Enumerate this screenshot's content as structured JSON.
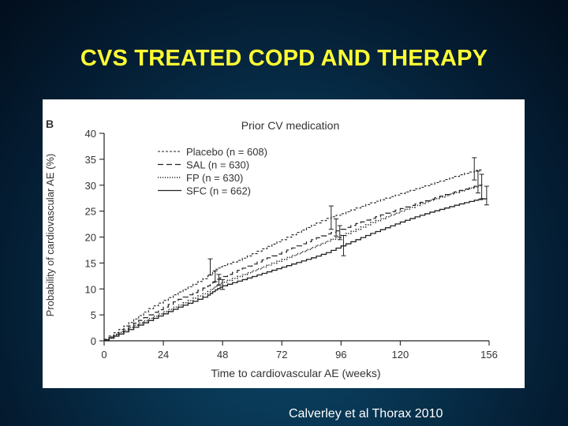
{
  "slide": {
    "title": "CVS TREATED COPD AND THERAPY",
    "citation": "Calverley et al Thorax 2010"
  },
  "chart_data": {
    "type": "line",
    "panel_label": "B",
    "title": "Prior CV medication",
    "xlabel": "Time to cardiovascular AE (weeks)",
    "ylabel": "Probability of cardiovascular AE (%)",
    "xlim": [
      0,
      156
    ],
    "ylim": [
      0,
      40
    ],
    "xticks": [
      0,
      24,
      48,
      72,
      96,
      120,
      156
    ],
    "yticks": [
      0,
      5,
      10,
      15,
      20,
      25,
      30,
      35,
      40
    ],
    "grid": false,
    "legend_position": "top-left",
    "series": [
      {
        "name": "Placebo (n = 608)",
        "style": "dashed-fine",
        "x": [
          0,
          6,
          12,
          18,
          24,
          30,
          36,
          42,
          45,
          48,
          54,
          60,
          66,
          72,
          78,
          84,
          90,
          96,
          102,
          108,
          114,
          120,
          126,
          132,
          138,
          144,
          150,
          153
        ],
        "y": [
          0.3,
          2.2,
          4.2,
          6.2,
          7.8,
          9.4,
          10.9,
          12.5,
          13.8,
          14.5,
          15.5,
          16.8,
          18.2,
          19.5,
          20.9,
          22.3,
          23.6,
          24.5,
          25.6,
          26.6,
          27.5,
          28.4,
          29.3,
          30.2,
          31.1,
          32.0,
          32.8,
          33.0
        ]
      },
      {
        "name": "SAL (n = 630)",
        "style": "dashed",
        "x": [
          0,
          6,
          12,
          18,
          24,
          30,
          36,
          42,
          45,
          48,
          54,
          60,
          66,
          72,
          78,
          84,
          90,
          96,
          102,
          108,
          114,
          120,
          126,
          132,
          138,
          144,
          150,
          153
        ],
        "y": [
          0.2,
          1.8,
          3.4,
          5.0,
          6.5,
          8.0,
          9.3,
          10.6,
          11.6,
          12.4,
          13.6,
          14.8,
          16.0,
          17.1,
          18.3,
          19.5,
          20.6,
          21.5,
          22.6,
          23.6,
          24.6,
          25.5,
          26.4,
          27.3,
          28.2,
          29.0,
          29.8,
          30.0
        ]
      },
      {
        "name": "FP (n = 630)",
        "style": "dotted",
        "x": [
          0,
          6,
          12,
          18,
          24,
          30,
          36,
          42,
          45,
          48,
          54,
          60,
          66,
          72,
          78,
          84,
          90,
          96,
          102,
          108,
          114,
          120,
          126,
          132,
          138,
          144,
          150,
          153
        ],
        "y": [
          0.2,
          1.6,
          3.0,
          4.3,
          5.6,
          6.9,
          8.2,
          9.5,
          10.5,
          11.3,
          12.4,
          13.5,
          14.6,
          15.7,
          16.8,
          18.0,
          19.2,
          20.3,
          21.5,
          22.8,
          23.9,
          25.0,
          26.1,
          27.1,
          28.0,
          28.9,
          29.7,
          30.2
        ]
      },
      {
        "name": "SFC (n = 662)",
        "style": "solid",
        "x": [
          0,
          6,
          12,
          18,
          24,
          30,
          36,
          42,
          45,
          48,
          54,
          60,
          66,
          72,
          78,
          84,
          90,
          96,
          102,
          108,
          114,
          120,
          126,
          132,
          138,
          144,
          150,
          155
        ],
        "y": [
          0.1,
          1.3,
          2.6,
          3.9,
          5.2,
          6.5,
          7.6,
          8.8,
          9.8,
          10.6,
          11.5,
          12.4,
          13.3,
          14.2,
          15.1,
          16.0,
          17.0,
          18.3,
          19.5,
          20.7,
          21.8,
          22.9,
          23.9,
          24.8,
          25.6,
          26.4,
          27.1,
          27.5
        ]
      }
    ],
    "error_bars": [
      {
        "series": "Placebo (n = 608)",
        "x": 43,
        "low": 12.7,
        "high": 15.8
      },
      {
        "series": "SAL (n = 630)",
        "x": 45,
        "low": 11.4,
        "high": 13.5
      },
      {
        "series": "FP (n = 630)",
        "x": 46.5,
        "low": 10.7,
        "high": 12.8
      },
      {
        "series": "SFC (n = 662)",
        "x": 48,
        "low": 9.9,
        "high": 11.8
      },
      {
        "series": "Placebo (n = 608)",
        "x": 92,
        "low": 21.5,
        "high": 26.0
      },
      {
        "series": "SAL (n = 630)",
        "x": 94,
        "low": 20.2,
        "high": 23.5
      },
      {
        "series": "FP (n = 630)",
        "x": 95.5,
        "low": 19.5,
        "high": 22.2
      },
      {
        "series": "SFC (n = 662)",
        "x": 97,
        "low": 16.4,
        "high": 20.3
      },
      {
        "series": "Placebo (n = 608)",
        "x": 150,
        "low": 31.0,
        "high": 35.3
      },
      {
        "series": "SAL (n = 630)",
        "x": 151.5,
        "low": 28.5,
        "high": 32.7
      },
      {
        "series": "FP (n = 630)",
        "x": 153,
        "low": 27.4,
        "high": 32.1
      },
      {
        "series": "SFC (n = 662)",
        "x": 155,
        "low": 26.2,
        "high": 29.8
      }
    ]
  }
}
